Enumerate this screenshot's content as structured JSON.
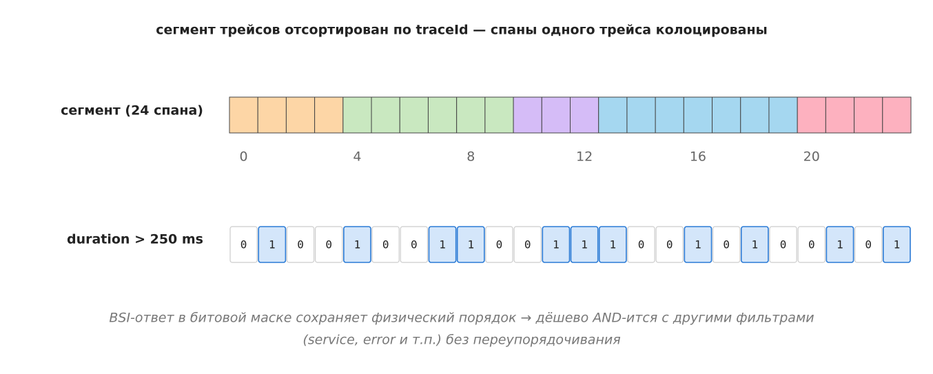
{
  "title": "сегмент трейсов отсортирован по traceId — спаны одного трейса колоцированы",
  "segment": {
    "label": "сегмент (24 спана)",
    "cells": [
      "#fdd6a6",
      "#fdd6a6",
      "#fdd6a6",
      "#fdd6a6",
      "#c9e8c0",
      "#c9e8c0",
      "#c9e8c0",
      "#c9e8c0",
      "#c9e8c0",
      "#c9e8c0",
      "#d5bcf7",
      "#d5bcf7",
      "#d5bcf7",
      "#a5d7f0",
      "#a5d7f0",
      "#a5d7f0",
      "#a5d7f0",
      "#a5d7f0",
      "#a5d7f0",
      "#a5d7f0",
      "#fdb1bf",
      "#fdb1bf",
      "#fdb1bf",
      "#fdb1bf"
    ],
    "indices": [
      0,
      4,
      8,
      12,
      16,
      20
    ]
  },
  "mask": {
    "label": "duration > 250 ms",
    "bits": [
      0,
      1,
      0,
      0,
      1,
      0,
      0,
      1,
      1,
      0,
      0,
      1,
      1,
      1,
      0,
      0,
      1,
      0,
      1,
      0,
      0,
      1,
      0,
      1
    ]
  },
  "caption": [
    "BSI-ответ в битовой маске сохраняет физический порядок → дёшево AND-ится с другими фильтрами",
    "(service, error и т.п.) без переупорядочивания"
  ]
}
